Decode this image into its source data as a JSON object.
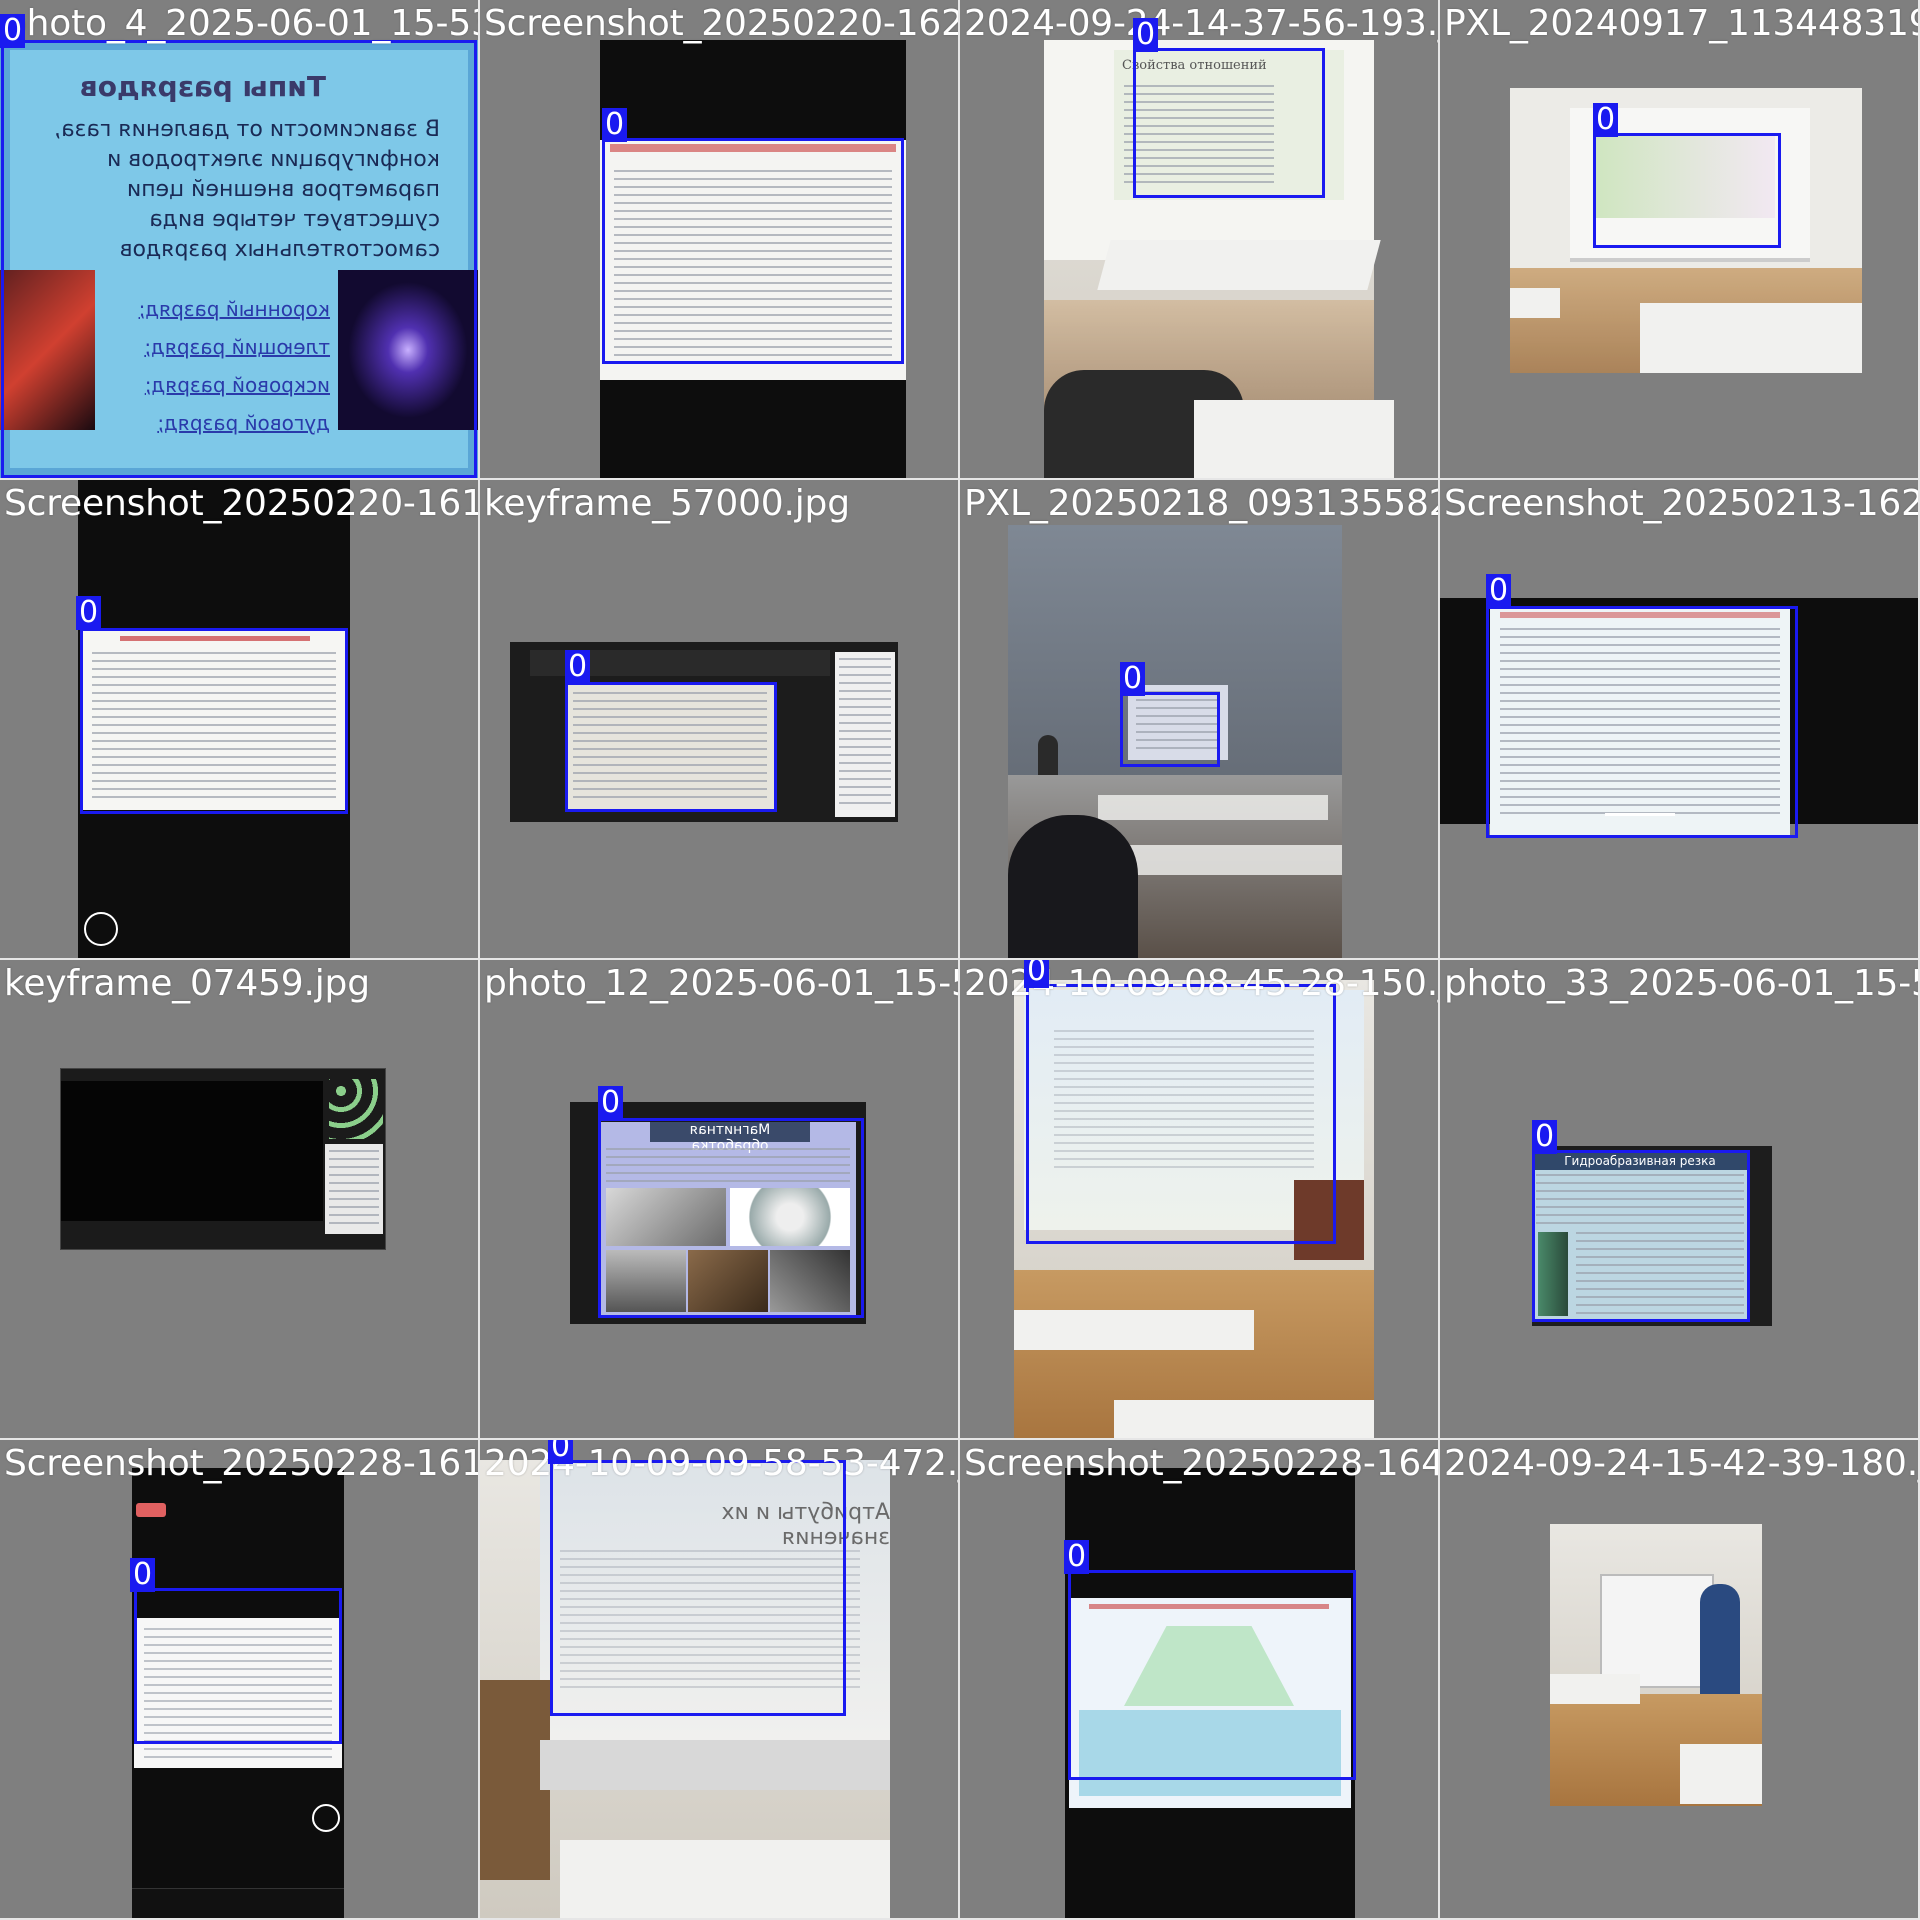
{
  "tiles": [
    {
      "file": "photo_4_2025-06-01_15-53-54.jpg",
      "label": "0"
    },
    {
      "file": "Screenshot_20250220-162016_Zoom.png",
      "label": "0"
    },
    {
      "file": "2024-09-24-14-37-56-193.jpg",
      "label": "0"
    },
    {
      "file": "PXL_20240917_113448319.jpg",
      "label": "0"
    },
    {
      "file": "Screenshot_20250220-161947_Zoom.png",
      "label": "0"
    },
    {
      "file": "keyframe_57000.jpg",
      "label": "0"
    },
    {
      "file": "PXL_20250218_093135582.jpg",
      "label": "0"
    },
    {
      "file": "Screenshot_20250213-1624",
      "label": "0"
    },
    {
      "file": "keyframe_07459.jpg",
      "label": ""
    },
    {
      "file": "photo_12_2025-06-01_15-53-54.jpg",
      "label": "0"
    },
    {
      "file": "2024-10-09-08-45-28-150.jpg",
      "label": "0"
    },
    {
      "file": "photo_33_2025-06-01_15-53",
      "label": "0"
    },
    {
      "file": "Screenshot_20250228-161352_Zoom.png",
      "label": "0"
    },
    {
      "file": "2024-10-09-09-58-53-472.jpg",
      "label": "0"
    },
    {
      "file": "Screenshot_20250228-164403_Zoom.png",
      "label": "0"
    },
    {
      "file": "2024-09-24-15-42-39-180.jpg",
      "label": ""
    }
  ],
  "slides": {
    "t1_title": "Типы разрядов",
    "t1_items": [
      "коронный разряд;",
      "тлеющий разряд;",
      "искровой разряд;",
      "дуговой разряд;"
    ],
    "t1_body": "В зависимости от давления газа, конфигурации электродов и параметров внешней цепи существует четыре вида самостоятельных разрядов",
    "t3_title": "Свойства отношений",
    "t10_title": "Магнитная обработка",
    "t12_title": "Гидроабразивная резка",
    "t14_title": "Атрибуты и их значения"
  },
  "colors": {
    "box": "#1a1af0",
    "tile_bg": "#7f7f7f",
    "separator": "#e6e6e6"
  }
}
